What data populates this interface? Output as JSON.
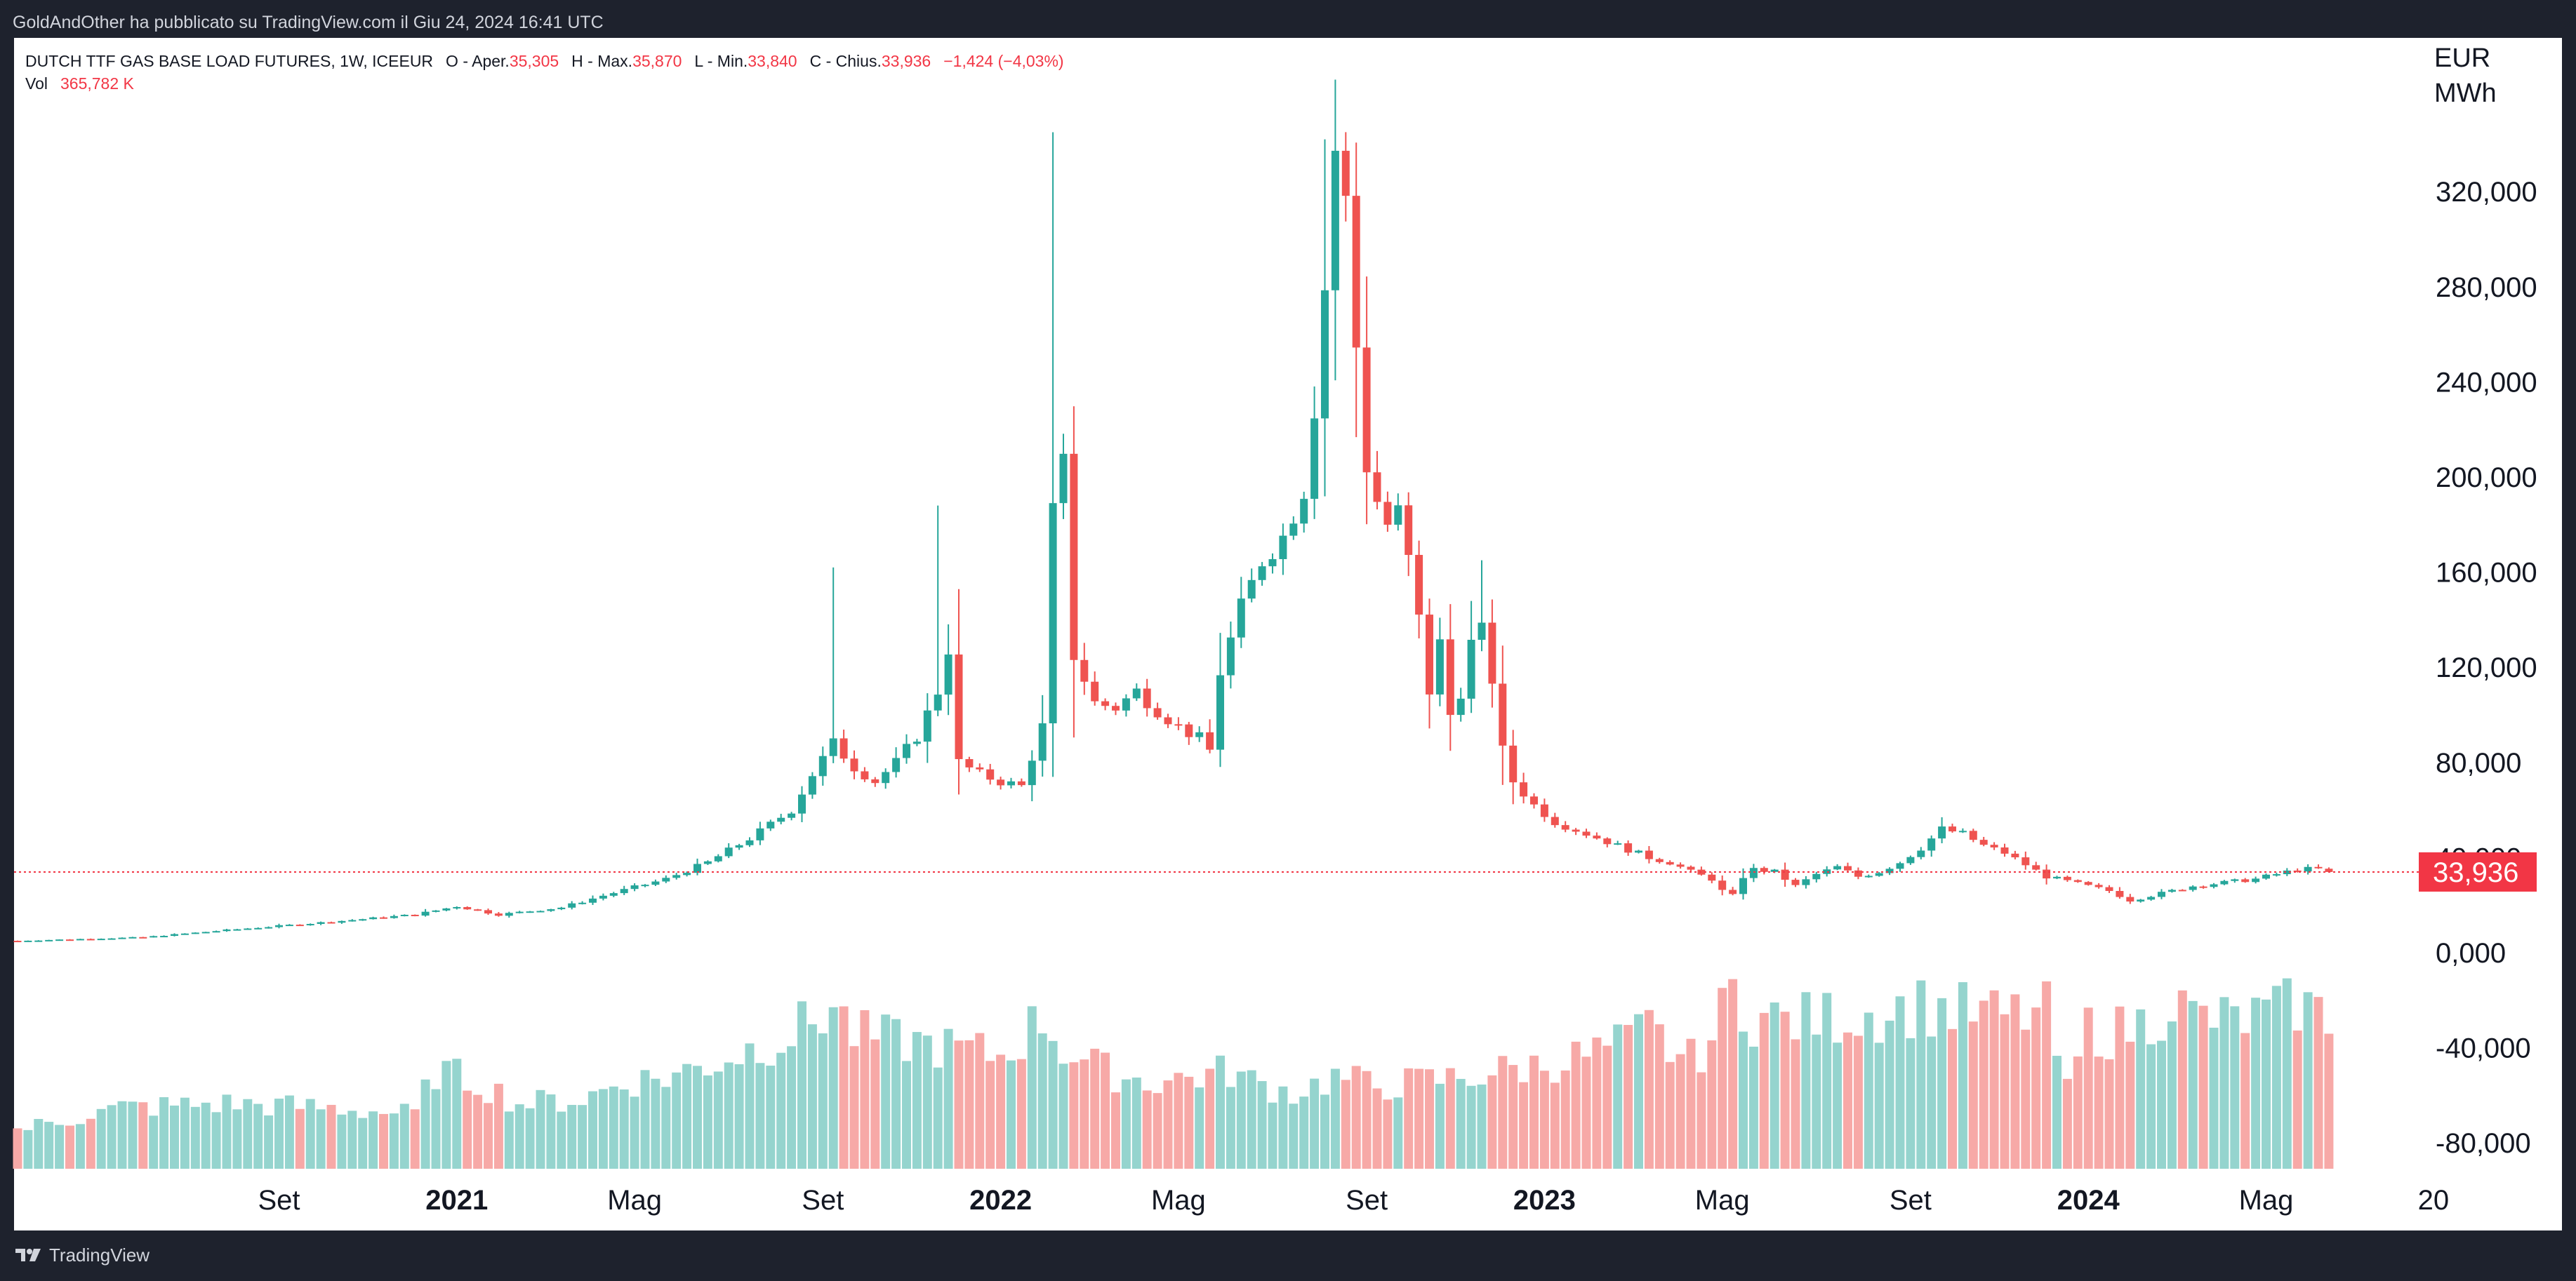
{
  "header": {
    "published_text": "GoldAndOther ha pubblicato su TradingView.com il Giu 24, 2024 16:41 UTC"
  },
  "legend": {
    "symbol": "DUTCH TTF GAS BASE LOAD FUTURES, 1W, ICEEUR",
    "open_label": "O - Aper.",
    "open_value": "35,305",
    "high_label": "H - Max.",
    "high_value": "35,870",
    "low_label": "L - Min.",
    "low_value": "33,840",
    "close_label": "C - Chius.",
    "close_value": "33,936",
    "change": "−1,424 (−4,03%)",
    "vol_label": "Vol",
    "vol_value": "365,782 K"
  },
  "unit": {
    "line1": "EUR",
    "line2": "MWh"
  },
  "price_tag": "33,936",
  "footer": {
    "brand": "TradingView"
  },
  "colors": {
    "up": "#26a69a",
    "down": "#ef5350",
    "vol_up": "#95d4ce",
    "vol_down": "#f7a9a7",
    "background": "#1e222d",
    "price_line": "#f23645"
  },
  "chart_data": {
    "type": "candlestick",
    "title": "DUTCH TTF GAS BASE LOAD FUTURES, 1W, ICEEUR",
    "y_ticks": [
      {
        "value": 320000,
        "label": "320,000"
      },
      {
        "value": 280000,
        "label": "280,000"
      },
      {
        "value": 240000,
        "label": "240,000"
      },
      {
        "value": 200000,
        "label": "200,000"
      },
      {
        "value": 160000,
        "label": "160,000"
      },
      {
        "value": 120000,
        "label": "120,000"
      },
      {
        "value": 80000,
        "label": "80,000"
      },
      {
        "value": 40000,
        "label": "40,000"
      },
      {
        "value": 0,
        "label": "0,000"
      },
      {
        "value": -40000,
        "label": "-40,000"
      },
      {
        "value": -80000,
        "label": "-80,000"
      }
    ],
    "x_ticks": [
      {
        "index": 25,
        "label": "Set",
        "bold": false
      },
      {
        "index": 42,
        "label": "2021",
        "bold": true
      },
      {
        "index": 59,
        "label": "Mag",
        "bold": false
      },
      {
        "index": 77,
        "label": "Set",
        "bold": false
      },
      {
        "index": 94,
        "label": "2022",
        "bold": true
      },
      {
        "index": 111,
        "label": "Mag",
        "bold": false
      },
      {
        "index": 129,
        "label": "Set",
        "bold": false
      },
      {
        "index": 146,
        "label": "2023",
        "bold": true
      },
      {
        "index": 163,
        "label": "Mag",
        "bold": false
      },
      {
        "index": 181,
        "label": "Set",
        "bold": false
      },
      {
        "index": 198,
        "label": "2024",
        "bold": true
      },
      {
        "index": 215,
        "label": "Mag",
        "bold": false
      },
      {
        "index": 231,
        "label": "20",
        "bold": false
      }
    ],
    "last_price": 33936,
    "ohlc_keyframes": [
      [
        0,
        5000
      ],
      [
        12,
        6500
      ],
      [
        20,
        9500
      ],
      [
        30,
        13000
      ],
      [
        38,
        16000
      ],
      [
        42,
        19500
      ],
      [
        46,
        16000
      ],
      [
        52,
        19000
      ],
      [
        56,
        24000
      ],
      [
        62,
        31000
      ],
      [
        66,
        38000
      ],
      [
        70,
        48000
      ],
      [
        74,
        60000
      ],
      [
        76,
        75000
      ],
      [
        78,
        88000
      ],
      [
        80,
        78000
      ],
      [
        82,
        72000
      ],
      [
        84,
        80000
      ],
      [
        86,
        91000
      ],
      [
        88,
        110000
      ],
      [
        89,
        128000
      ],
      [
        90,
        80000
      ],
      [
        92,
        75000
      ],
      [
        94,
        72000
      ],
      [
        96,
        70000
      ],
      [
        98,
        95000
      ],
      [
        99,
        185000
      ],
      [
        100,
        205000
      ],
      [
        101,
        125000
      ],
      [
        103,
        105000
      ],
      [
        105,
        103000
      ],
      [
        107,
        110000
      ],
      [
        109,
        102000
      ],
      [
        111,
        95000
      ],
      [
        113,
        90000
      ],
      [
        114,
        85000
      ],
      [
        115,
        118000
      ],
      [
        117,
        145000
      ],
      [
        119,
        165000
      ],
      [
        121,
        175000
      ],
      [
        123,
        195000
      ],
      [
        124,
        230000
      ],
      [
        125,
        280000
      ],
      [
        126,
        338000
      ],
      [
        127,
        315000
      ],
      [
        128,
        255000
      ],
      [
        129,
        205000
      ],
      [
        130,
        190000
      ],
      [
        131,
        180000
      ],
      [
        132,
        185000
      ],
      [
        133,
        165000
      ],
      [
        134,
        140000
      ],
      [
        135,
        110000
      ],
      [
        136,
        130000
      ],
      [
        137,
        100000
      ],
      [
        138,
        110000
      ],
      [
        139,
        130000
      ],
      [
        140,
        135000
      ],
      [
        141,
        115000
      ],
      [
        142,
        85000
      ],
      [
        143,
        72000
      ],
      [
        145,
        62000
      ],
      [
        147,
        55000
      ],
      [
        150,
        50000
      ],
      [
        153,
        45000
      ],
      [
        156,
        40000
      ],
      [
        158,
        38000
      ],
      [
        160,
        34000
      ],
      [
        162,
        31000
      ],
      [
        163,
        26000
      ],
      [
        164,
        24000
      ],
      [
        165,
        32000
      ],
      [
        166,
        35000
      ],
      [
        168,
        34000
      ],
      [
        170,
        28000
      ],
      [
        172,
        33000
      ],
      [
        174,
        36000
      ],
      [
        176,
        32000
      ],
      [
        178,
        34000
      ],
      [
        180,
        38000
      ],
      [
        182,
        44000
      ],
      [
        184,
        52000
      ],
      [
        186,
        50000
      ],
      [
        188,
        45000
      ],
      [
        190,
        42000
      ],
      [
        192,
        37000
      ],
      [
        194,
        32000
      ],
      [
        196,
        30000
      ],
      [
        198,
        28000
      ],
      [
        200,
        26000
      ],
      [
        202,
        22000
      ],
      [
        204,
        24000
      ],
      [
        206,
        26000
      ],
      [
        208,
        28000
      ],
      [
        210,
        29000
      ],
      [
        212,
        30000
      ],
      [
        214,
        31000
      ],
      [
        216,
        33000
      ],
      [
        218,
        35000
      ],
      [
        220,
        35300
      ],
      [
        221,
        33936
      ]
    ],
    "volume_profile": [
      [
        0,
        18
      ],
      [
        10,
        28
      ],
      [
        20,
        30
      ],
      [
        30,
        28
      ],
      [
        38,
        25
      ],
      [
        40,
        45
      ],
      [
        44,
        40
      ],
      [
        48,
        30
      ],
      [
        54,
        32
      ],
      [
        58,
        40
      ],
      [
        62,
        42
      ],
      [
        66,
        48
      ],
      [
        70,
        55
      ],
      [
        74,
        62
      ],
      [
        76,
        68
      ],
      [
        78,
        75
      ],
      [
        80,
        62
      ],
      [
        82,
        60
      ],
      [
        86,
        58
      ],
      [
        90,
        55
      ],
      [
        94,
        52
      ],
      [
        96,
        60
      ],
      [
        98,
        70
      ],
      [
        100,
        55
      ],
      [
        104,
        45
      ],
      [
        108,
        40
      ],
      [
        112,
        42
      ],
      [
        116,
        45
      ],
      [
        118,
        40
      ],
      [
        122,
        35
      ],
      [
        126,
        42
      ],
      [
        130,
        38
      ],
      [
        134,
        40
      ],
      [
        138,
        42
      ],
      [
        142,
        45
      ],
      [
        146,
        48
      ],
      [
        150,
        52
      ],
      [
        154,
        58
      ],
      [
        156,
        65
      ],
      [
        158,
        55
      ],
      [
        160,
        50
      ],
      [
        162,
        60
      ],
      [
        164,
        82
      ],
      [
        166,
        70
      ],
      [
        170,
        68
      ],
      [
        174,
        70
      ],
      [
        178,
        72
      ],
      [
        182,
        75
      ],
      [
        186,
        72
      ],
      [
        190,
        70
      ],
      [
        194,
        72
      ],
      [
        196,
        35
      ],
      [
        198,
        65
      ],
      [
        200,
        62
      ],
      [
        204,
        68
      ],
      [
        206,
        78
      ],
      [
        208,
        70
      ],
      [
        212,
        68
      ],
      [
        216,
        72
      ],
      [
        218,
        76
      ],
      [
        221,
        70
      ]
    ]
  }
}
